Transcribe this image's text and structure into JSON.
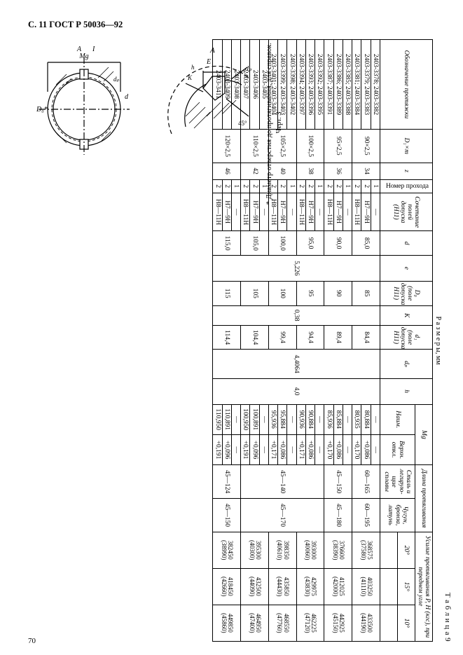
{
  "header": "С. 11 ГОСТ Р 50036—92",
  "pagenum": "70",
  "fig_note": "*  Диаметр отверстия до протягивания, для справок.",
  "fig_caption": "Черт. 3",
  "table_label": "Т а б л и ц а 9",
  "sizes_label": "Р а з м е р ы,   мм",
  "headers": {
    "desig": "Обозначение протяжки",
    "dm": "D₁×m",
    "z": "z",
    "np": "Номер прохода",
    "tol": "Сочетание полей допуска (H11)",
    "d": "d",
    "e": "e",
    "d0": "D₀ (поле допуска H11)",
    "K": "K",
    "d1": "d₁ (поле допуска H11)",
    "dp": "dₚ",
    "h": "h",
    "Mg": "Mg",
    "nom": "Наим.",
    "ver": "Верхн. откл.",
    "len": "Длина протягивания",
    "mat1": "Сталь и легирую-щие сплавы",
    "mat2": "Чугун, бронза, латунь",
    "force": "Усилие протягивания P, Н (кгс), при переднем угле",
    "a20": "20°",
    "a15": "15°",
    "a10": "10°"
  },
  "common": {
    "e": "5,226",
    "K": "0,38",
    "dp": "4,4064",
    "h": "4,0"
  },
  "groups": [
    {
      "dm": "90×2,5",
      "z": "34",
      "d": "85,0",
      "d0": "85",
      "d1": "84,4",
      "mat1": "60—165",
      "mat2": "60—195",
      "rows": [
        {
          "desig": "2403-3378; 2403-3382",
          "np": "1",
          "tol": "—",
          "nom": "—",
          "ver": "—",
          "f20": "368575",
          "f20k": "(37580)",
          "f15": "403250",
          "f15k": "(41110)",
          "f10": "433500",
          "f10k": "(44190)"
        },
        {
          "desig": "2403-3379; 2403-3383",
          "np": "2",
          "tol": "H7—9H",
          "nom": "80,884",
          "ver": "+0,086",
          "f20": "",
          "f20k": "",
          "f15": "",
          "f15k": "",
          "f10": "",
          "f10k": ""
        },
        {
          "desig": "2403-3381; 2403-3384",
          "np": "2",
          "tol": "H8—11H",
          "nom": "80,935",
          "ver": "+0,170",
          "f20": "",
          "f20k": "",
          "f15": "",
          "f15k": "",
          "f10": "",
          "f10k": ""
        }
      ]
    },
    {
      "dm": "95×2,5",
      "z": "36",
      "d": "90,0",
      "d0": "90",
      "d1": "89,4",
      "mat1": "45—150",
      "mat2": "45—180",
      "rows": [
        {
          "desig": "2403-3385; 2403-3388",
          "np": "1",
          "tol": "—",
          "nom": "—",
          "ver": "—",
          "f20": "376600",
          "f20k": "(38390)",
          "f15": "412025",
          "f15k": "(42000)",
          "f10": "442925",
          "f10k": "(45150)"
        },
        {
          "desig": "2403-3386; 2403-3389",
          "np": "2",
          "tol": "H7—9H",
          "nom": "85,884",
          "ver": "+0,086",
          "f20": "",
          "f20k": "",
          "f15": "",
          "f15k": "",
          "f10": "",
          "f10k": ""
        },
        {
          "desig": "2403-3387; 2403-3391",
          "np": "2",
          "tol": "H8—11H",
          "nom": "85,936",
          "ver": "+0,170",
          "f20": "",
          "f20k": "",
          "f15": "",
          "f15k": "",
          "f10": "",
          "f10k": ""
        }
      ]
    },
    {
      "dm": "100×2,5",
      "z": "38",
      "d": "95,0",
      "d0": "95",
      "d1": "94,4",
      "mat1": "45—140",
      "mat2": "45—170",
      "rows": [
        {
          "desig": "2403-3392; 2403-3395",
          "np": "1",
          "tol": "—",
          "nom": "—",
          "ver": "—",
          "f20": "393000",
          "f20k": "(40060)",
          "f15": "429975",
          "f15k": "(43830)",
          "f10": "462225",
          "f10k": "(47120)"
        },
        {
          "desig": "2403-3393; 2403-3396",
          "np": "2",
          "tol": "H7—9H",
          "nom": "90,884",
          "ver": "+0,086",
          "f20": "",
          "f20k": "",
          "f15": "",
          "f15k": "",
          "f10": "",
          "f10k": ""
        },
        {
          "desig": "2403-3394; 2403-3397",
          "np": "2",
          "tol": "H8—11H",
          "nom": "90,936",
          "ver": "+0,171",
          "f20": "",
          "f20k": "",
          "f15": "",
          "f15k": "",
          "f10": "",
          "f10k": ""
        }
      ]
    },
    {
      "dm": "105×2,5",
      "z": "40",
      "d": "100,0",
      "d0": "100",
      "d1": "99,4",
      "mat1": "",
      "mat2": "",
      "rows": [
        {
          "desig": "2403-3398; 2403-3402",
          "np": "1",
          "tol": "—",
          "nom": "—",
          "ver": "—",
          "f20": "398350",
          "f20k": "(40610)",
          "f15": "435850",
          "f15k": "(44430)",
          "f10": "468550",
          "f10k": "(47760)"
        },
        {
          "desig": "2403-3399; 2403-3403",
          "np": "2",
          "tol": "H7—9H",
          "nom": "95,884",
          "ver": "+0,086",
          "f20": "",
          "f20k": "",
          "f15": "",
          "f15k": "",
          "f10": "",
          "f10k": ""
        },
        {
          "desig": "2403-3401; 2403-3404",
          "np": "2",
          "tol": "H8—11H",
          "nom": "95,936",
          "ver": "+0,171",
          "f20": "",
          "f20k": "",
          "f15": "",
          "f15k": "",
          "f10": "",
          "f10k": ""
        }
      ]
    },
    {
      "dm": "110×2,5",
      "z": "42",
      "d": "105,0",
      "d0": "105",
      "d1": "104,4",
      "mat1": "",
      "mat2": "",
      "rows": [
        {
          "desig": "2403-3405",
          "np": "1",
          "tol": "—",
          "nom": "—",
          "ver": "—",
          "f20": "395300",
          "f20k": "(40300)",
          "f15": "432500",
          "f15k": "(44090)",
          "f10": "464950",
          "f10k": "(47400)"
        },
        {
          "desig": "2403-3406",
          "np": "2",
          "tol": "H7—9H",
          "nom": "100,891",
          "ver": "+0,096",
          "f20": "",
          "f20k": "",
          "f15": "",
          "f15k": "",
          "f10": "",
          "f10k": ""
        },
        {
          "desig": "2403-3407",
          "np": "2",
          "tol": "H8—11H",
          "nom": "100,950",
          "ver": "+0,191",
          "f20": "",
          "f20k": "",
          "f15": "",
          "f15k": "",
          "f10": "",
          "f10k": ""
        }
      ]
    },
    {
      "dm": "120×2,5",
      "z": "46",
      "d": "115,0",
      "d0": "115",
      "d1": "114,4",
      "mat1": "45—124",
      "mat2": "45—150",
      "rows": [
        {
          "desig": "2403-3408",
          "np": "1",
          "tol": "—",
          "nom": "—",
          "ver": "—",
          "f20": "382450",
          "f20k": "(38990)",
          "f15": "418450",
          "f15k": "(42660)",
          "f10": "449850",
          "f10k": "(45860)"
        },
        {
          "desig": "2403-3409",
          "np": "2",
          "tol": "H7—9H",
          "nom": "110,891",
          "ver": "+0,096",
          "f20": "",
          "f20k": "",
          "f15": "",
          "f15k": "",
          "f10": "",
          "f10k": ""
        },
        {
          "desig": "2403-3411",
          "np": "2",
          "tol": "H8—11H",
          "nom": "110,950",
          "ver": "+0,191",
          "f20": "",
          "f20k": "",
          "f15": "",
          "f15k": "",
          "f10": "",
          "f10k": ""
        }
      ]
    }
  ]
}
